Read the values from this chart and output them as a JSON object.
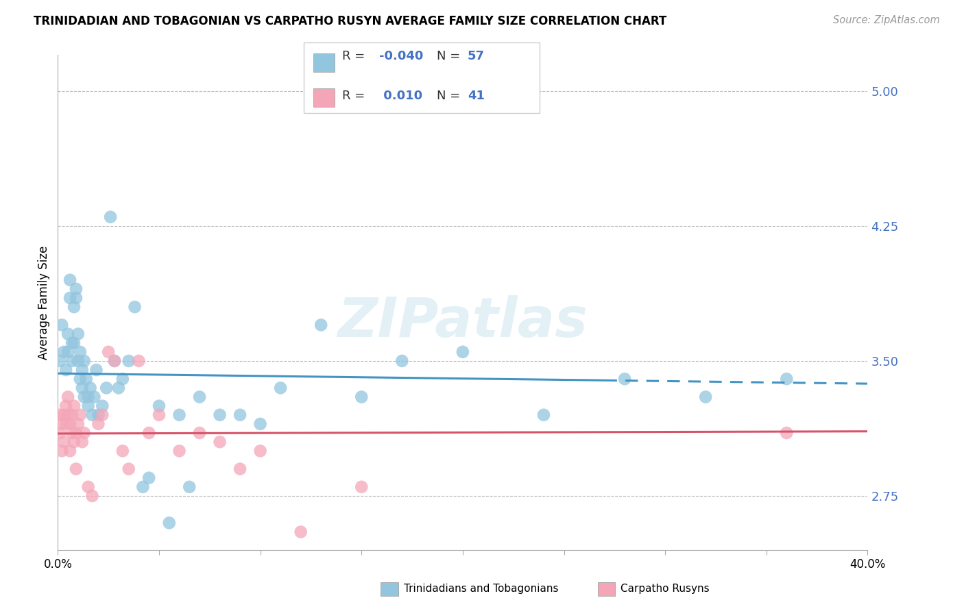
{
  "title": "TRINIDADIAN AND TOBAGONIAN VS CARPATHO RUSYN AVERAGE FAMILY SIZE CORRELATION CHART",
  "source": "Source: ZipAtlas.com",
  "ylabel": "Average Family Size",
  "yticks": [
    2.75,
    3.5,
    4.25,
    5.0
  ],
  "xlim": [
    0.0,
    0.4
  ],
  "ylim": [
    2.45,
    5.2
  ],
  "blue_color": "#92c5de",
  "pink_color": "#f4a6b8",
  "line_blue": "#4393c3",
  "line_pink": "#d6546a",
  "blue_points_x": [
    0.001,
    0.002,
    0.003,
    0.004,
    0.005,
    0.005,
    0.006,
    0.006,
    0.007,
    0.007,
    0.008,
    0.008,
    0.009,
    0.009,
    0.01,
    0.01,
    0.011,
    0.011,
    0.012,
    0.012,
    0.013,
    0.013,
    0.014,
    0.015,
    0.015,
    0.016,
    0.017,
    0.018,
    0.019,
    0.02,
    0.022,
    0.024,
    0.026,
    0.028,
    0.03,
    0.032,
    0.035,
    0.038,
    0.042,
    0.045,
    0.05,
    0.055,
    0.06,
    0.065,
    0.07,
    0.08,
    0.09,
    0.1,
    0.11,
    0.13,
    0.15,
    0.17,
    0.2,
    0.24,
    0.28,
    0.32,
    0.36
  ],
  "blue_points_y": [
    3.5,
    3.7,
    3.55,
    3.45,
    3.65,
    3.55,
    3.85,
    3.95,
    3.5,
    3.6,
    3.6,
    3.8,
    3.9,
    3.85,
    3.5,
    3.65,
    3.4,
    3.55,
    3.35,
    3.45,
    3.3,
    3.5,
    3.4,
    3.3,
    3.25,
    3.35,
    3.2,
    3.3,
    3.45,
    3.2,
    3.25,
    3.35,
    4.3,
    3.5,
    3.35,
    3.4,
    3.5,
    3.8,
    2.8,
    2.85,
    3.25,
    2.6,
    3.2,
    2.8,
    3.3,
    3.2,
    3.2,
    3.15,
    3.35,
    3.7,
    3.3,
    3.5,
    3.55,
    3.2,
    3.4,
    3.3,
    3.4
  ],
  "pink_points_x": [
    0.001,
    0.001,
    0.002,
    0.002,
    0.003,
    0.003,
    0.004,
    0.004,
    0.005,
    0.005,
    0.006,
    0.006,
    0.007,
    0.007,
    0.008,
    0.008,
    0.009,
    0.009,
    0.01,
    0.011,
    0.012,
    0.013,
    0.015,
    0.017,
    0.02,
    0.022,
    0.025,
    0.028,
    0.032,
    0.035,
    0.04,
    0.045,
    0.05,
    0.06,
    0.07,
    0.08,
    0.09,
    0.1,
    0.12,
    0.15,
    0.36
  ],
  "pink_points_y": [
    3.2,
    3.1,
    3.15,
    3.0,
    3.2,
    3.05,
    3.25,
    3.15,
    3.3,
    3.2,
    3.15,
    3.0,
    3.2,
    3.1,
    3.25,
    3.05,
    2.9,
    3.1,
    3.15,
    3.2,
    3.05,
    3.1,
    2.8,
    2.75,
    3.15,
    3.2,
    3.55,
    3.5,
    3.0,
    2.9,
    3.5,
    3.1,
    3.2,
    3.0,
    3.1,
    3.05,
    2.9,
    3.0,
    2.55,
    2.8,
    3.1
  ]
}
